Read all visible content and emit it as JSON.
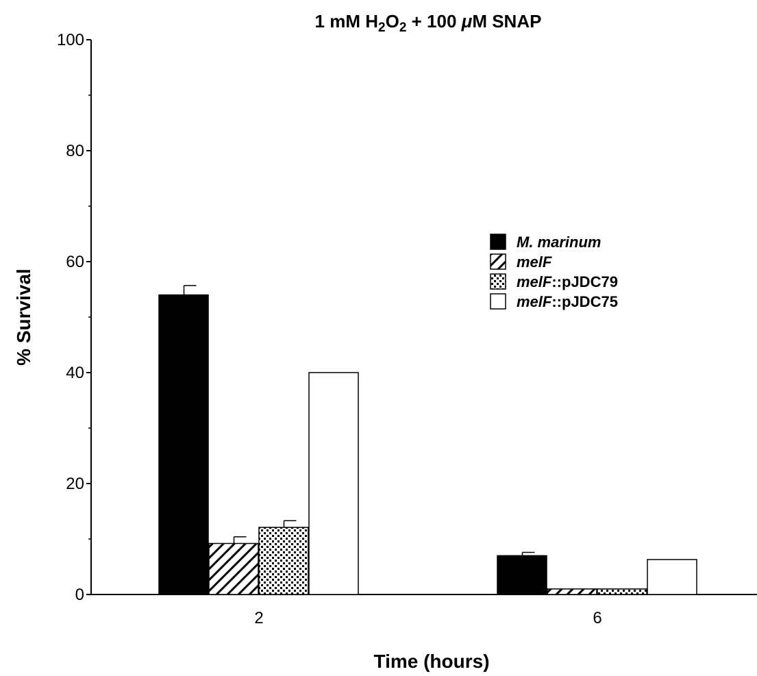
{
  "chart_data": {
    "type": "bar",
    "title": {
      "pre": "1 mM H",
      "sub1": "2",
      "mid": "O",
      "sub2": "2",
      "post": " + 100 ",
      "mu": "μ",
      "tail": "M SNAP"
    },
    "xlabel": "Time (hours)",
    "ylabel": "% Survival",
    "ylim": [
      0,
      100
    ],
    "yticks": [
      0,
      20,
      40,
      60,
      80,
      100
    ],
    "categories": [
      "2",
      "6"
    ],
    "series": [
      {
        "name": "M. marinum",
        "name_italic": "M. marinum",
        "name_suffix": "",
        "pattern": "solid",
        "values": [
          54,
          7
        ],
        "errors": [
          1.7,
          0.6
        ]
      },
      {
        "name": "melF",
        "name_italic": "melF",
        "name_suffix": "",
        "pattern": "diagonal",
        "values": [
          9.2,
          1.0
        ],
        "errors": [
          1.2,
          null
        ]
      },
      {
        "name": "melF::pJDC79",
        "name_italic": "melF",
        "name_suffix": "::pJDC79",
        "pattern": "dots",
        "values": [
          12.1,
          1.0
        ],
        "errors": [
          1.2,
          null
        ]
      },
      {
        "name": "melF::pJDC75",
        "name_italic": "melF",
        "name_suffix": "::pJDC75",
        "pattern": "empty",
        "values": [
          40,
          6.3
        ],
        "errors": [
          null,
          null
        ]
      }
    ],
    "legend_position": "right-middle"
  }
}
